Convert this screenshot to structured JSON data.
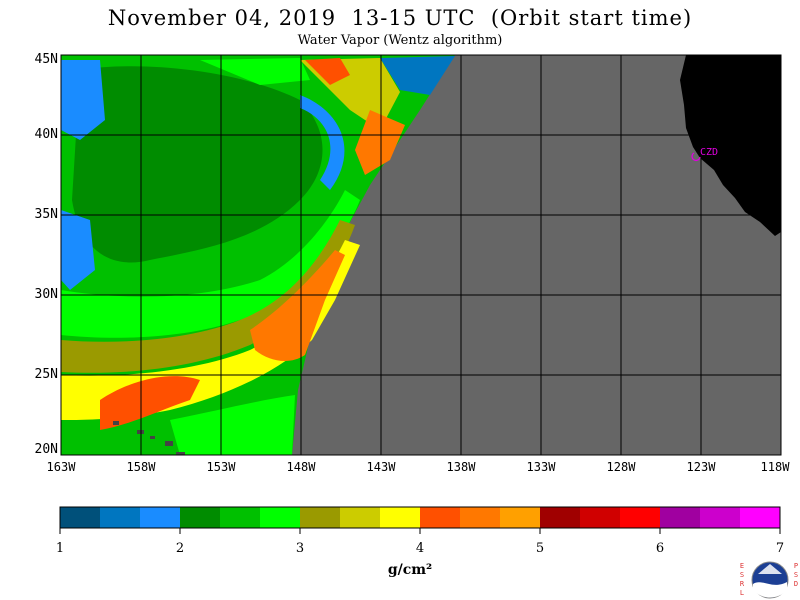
{
  "title": "November 04, 2019  13-15 UTC  (Orbit start time)",
  "subtitle": "Water Vapor (Wentz algorithm)",
  "map": {
    "lon_range": [
      -163,
      -118
    ],
    "lat_range": [
      20,
      45
    ],
    "no_data_color": "#666666",
    "land_color": "#000000",
    "y_ticks": [
      "45N",
      "40N",
      "35N",
      "30N",
      "25N",
      "20N"
    ],
    "x_ticks": [
      "163W",
      "158W",
      "153W",
      "148W",
      "143W",
      "138W",
      "133W",
      "128W",
      "123W",
      "118W"
    ],
    "station": {
      "label": "CZD",
      "lon": -123.0,
      "lat": 38.6,
      "color": "#e000e0"
    }
  },
  "colorbar": {
    "unit": "g/cm²",
    "range": [
      1,
      7
    ],
    "ticks": [
      "1",
      "2",
      "3",
      "4",
      "5",
      "6",
      "7"
    ],
    "colors": [
      "#00507a",
      "#0076c0",
      "#1a8cff",
      "#008c00",
      "#00c000",
      "#00ff00",
      "#9a9a00",
      "#cccc00",
      "#ffff00",
      "#ff5000",
      "#ff7800",
      "#ffa000",
      "#a00000",
      "#d00000",
      "#ff0000",
      "#a000a0",
      "#cc00cc",
      "#ff00ff"
    ]
  },
  "logo": {
    "left_letters": "ESRL",
    "right_letters": "PSD",
    "name": "NOAA"
  }
}
